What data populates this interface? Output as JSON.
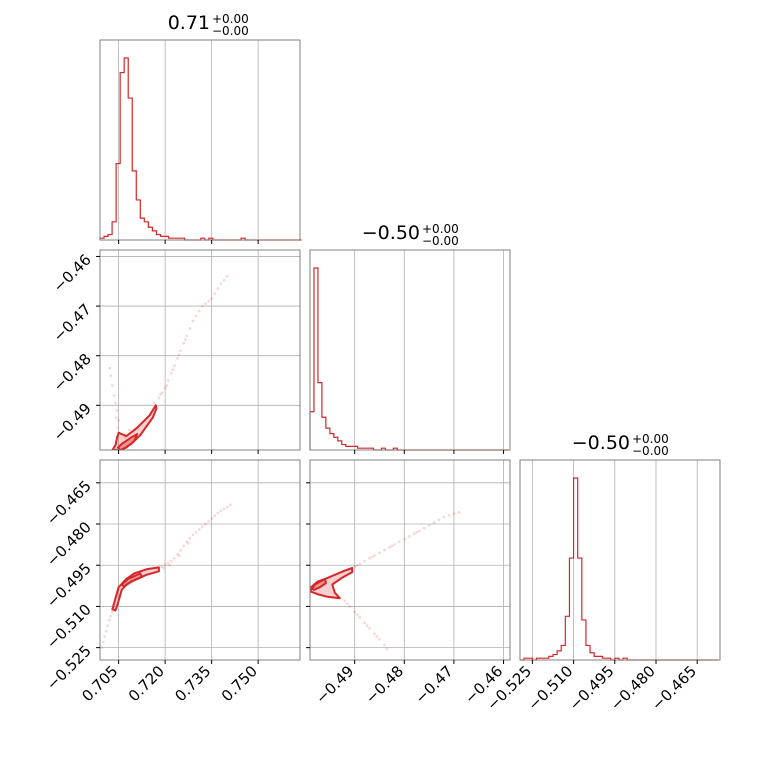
{
  "chart_data": {
    "type": "corner",
    "color": "#d62728",
    "parameters": [
      {
        "index": 0,
        "range": [
          0.699,
          0.7635
        ],
        "ticks": [
          0.705,
          0.72,
          0.735,
          0.75
        ],
        "tick_labels": [
          "0.705",
          "0.720",
          "0.735",
          "0.750"
        ]
      },
      {
        "index": 1,
        "range": [
          -0.499,
          -0.4587
        ],
        "ticks": [
          -0.49,
          -0.48,
          -0.47,
          -0.46
        ],
        "tick_labels": [
          "−0.49",
          "−0.48",
          "−0.47",
          "−0.46"
        ]
      },
      {
        "index": 2,
        "range": [
          -0.5295,
          -0.4567
        ],
        "ticks": [
          -0.525,
          -0.51,
          -0.495,
          -0.48,
          -0.465
        ],
        "tick_labels": [
          "−0.525",
          "−0.510",
          "−0.495",
          "−0.480",
          "−0.465"
        ]
      }
    ],
    "titles": [
      {
        "value": "0.71",
        "plus": "+0.00",
        "minus": "−0.00"
      },
      {
        "value": "−0.50",
        "plus": "+0.00",
        "minus": "−0.00"
      },
      {
        "value": "−0.50",
        "plus": "+0.00",
        "minus": "−0.00"
      }
    ],
    "histograms": [
      {
        "param": 0,
        "edges": [
          0.699,
          0.7003,
          0.7016,
          0.7029,
          0.7042,
          0.7055,
          0.7068,
          0.7081,
          0.7094,
          0.7107,
          0.712,
          0.7133,
          0.7146,
          0.7159,
          0.7172,
          0.7185,
          0.7198,
          0.7211,
          0.7224,
          0.7237,
          0.725,
          0.7263,
          0.7276,
          0.7289,
          0.7302,
          0.7315,
          0.7328,
          0.7341,
          0.7354,
          0.7367,
          0.738,
          0.7393,
          0.7406,
          0.7419,
          0.7432,
          0.7445,
          0.7458,
          0.7471,
          0.7484,
          0.7497,
          0.751,
          0.7523,
          0.7536,
          0.7549,
          0.7562,
          0.7575,
          0.7588,
          0.7601,
          0.7614,
          0.7627,
          0.764
        ],
        "counts": [
          1,
          2,
          3,
          10,
          42,
          92,
          100,
          78,
          38,
          22,
          12,
          10,
          7,
          5,
          3,
          2,
          2,
          1,
          1,
          1,
          1,
          0,
          0,
          0,
          0,
          1,
          0,
          1,
          0,
          0,
          0,
          0,
          0,
          0,
          0,
          1,
          0,
          0,
          0,
          0,
          0,
          0,
          0,
          0,
          0,
          0,
          0,
          0,
          0,
          0
        ]
      },
      {
        "param": 1,
        "edges": [
          -0.499,
          -0.4982,
          -0.4974,
          -0.4966,
          -0.4958,
          -0.495,
          -0.4942,
          -0.4934,
          -0.4926,
          -0.4918,
          -0.491,
          -0.4902,
          -0.4894,
          -0.4886,
          -0.4878,
          -0.487,
          -0.4862,
          -0.4854,
          -0.4846,
          -0.4838,
          -0.483,
          -0.4822,
          -0.4814,
          -0.4806,
          -0.4798,
          -0.479,
          -0.4782,
          -0.4774,
          -0.4766,
          -0.4758,
          -0.475,
          -0.4742,
          -0.4734,
          -0.4726,
          -0.4718,
          -0.471,
          -0.4702,
          -0.4694,
          -0.4686,
          -0.4678,
          -0.467,
          -0.4662,
          -0.4654,
          -0.4646,
          -0.4638,
          -0.463,
          -0.4622,
          -0.4614,
          -0.4606,
          -0.4598,
          -0.459
        ],
        "counts": [
          21,
          100,
          37,
          18,
          12,
          9,
          7,
          5,
          3,
          2,
          2,
          2,
          1,
          1,
          1,
          1,
          0,
          0,
          1,
          0,
          0,
          1,
          0,
          0,
          0,
          0,
          0,
          0,
          0,
          0,
          0,
          0,
          0,
          0,
          0,
          0,
          0,
          0,
          0,
          0,
          0,
          0,
          0,
          0,
          0,
          0,
          0,
          0,
          0,
          0
        ]
      },
      {
        "param": 2,
        "edges": [
          -0.5295,
          -0.528,
          -0.5265,
          -0.525,
          -0.5235,
          -0.522,
          -0.5205,
          -0.519,
          -0.5175,
          -0.516,
          -0.5145,
          -0.513,
          -0.5115,
          -0.51,
          -0.5085,
          -0.507,
          -0.5055,
          -0.504,
          -0.5025,
          -0.501,
          -0.4995,
          -0.498,
          -0.4965,
          -0.495,
          -0.4935,
          -0.492,
          -0.4905,
          -0.489,
          -0.4875,
          -0.486,
          -0.4845,
          -0.483,
          -0.4815,
          -0.48,
          -0.4785,
          -0.477,
          -0.4755,
          -0.474,
          -0.4725,
          -0.471,
          -0.4695,
          -0.468,
          -0.4665,
          -0.465,
          -0.4635,
          -0.462,
          -0.4605,
          -0.459,
          -0.4575
        ],
        "counts": [
          0,
          1,
          1,
          0,
          1,
          1,
          1,
          2,
          3,
          5,
          8,
          24,
          56,
          100,
          56,
          22,
          8,
          4,
          2,
          2,
          1,
          1,
          0,
          1,
          0,
          1,
          0,
          0,
          0,
          0,
          0,
          0,
          0,
          0,
          0,
          0,
          0,
          0,
          0,
          0,
          0,
          0,
          0,
          0,
          0,
          0,
          0,
          0
        ]
      }
    ],
    "contour_panels": [
      {
        "x_param": 0,
        "y_param": 1,
        "regions": [
          {
            "level": "outer",
            "points": [
              [
                0.703,
                -0.499
              ],
              [
                0.704,
                -0.498
              ],
              [
                0.7045,
                -0.4965
              ],
              [
                0.705,
                -0.4955
              ],
              [
                0.706,
                -0.4958
              ],
              [
                0.7075,
                -0.4962
              ],
              [
                0.711,
                -0.4945
              ],
              [
                0.715,
                -0.492
              ],
              [
                0.717,
                -0.49
              ],
              [
                0.7172,
                -0.4907
              ],
              [
                0.716,
                -0.4925
              ],
              [
                0.712,
                -0.496
              ],
              [
                0.709,
                -0.4978
              ],
              [
                0.706,
                -0.499
              ]
            ]
          },
          {
            "level": "inner",
            "points": [
              [
                0.7048,
                -0.4985
              ],
              [
                0.706,
                -0.4978
              ],
              [
                0.709,
                -0.4965
              ],
              [
                0.711,
                -0.4958
              ],
              [
                0.71,
                -0.4972
              ],
              [
                0.7075,
                -0.4985
              ],
              [
                0.7055,
                -0.499
              ]
            ]
          }
        ],
        "scatter": [
          [
            0.705,
            -0.493
          ],
          [
            0.7045,
            -0.491
          ],
          [
            0.704,
            -0.4895
          ],
          [
            0.7035,
            -0.488
          ],
          [
            0.703,
            -0.486
          ],
          [
            0.7025,
            -0.484
          ],
          [
            0.7022,
            -0.4825
          ],
          [
            0.7048,
            -0.4945
          ],
          [
            0.7042,
            -0.4925
          ],
          [
            0.718,
            -0.4885
          ],
          [
            0.719,
            -0.4875
          ],
          [
            0.72,
            -0.4865
          ],
          [
            0.721,
            -0.485
          ],
          [
            0.722,
            -0.4835
          ],
          [
            0.723,
            -0.482
          ],
          [
            0.724,
            -0.4805
          ],
          [
            0.725,
            -0.479
          ],
          [
            0.726,
            -0.4775
          ],
          [
            0.727,
            -0.476
          ],
          [
            0.728,
            -0.4745
          ],
          [
            0.729,
            -0.473
          ],
          [
            0.73,
            -0.472
          ],
          [
            0.731,
            -0.471
          ],
          [
            0.732,
            -0.47
          ],
          [
            0.733,
            -0.4695
          ],
          [
            0.734,
            -0.469
          ],
          [
            0.735,
            -0.4685
          ],
          [
            0.736,
            -0.4675
          ],
          [
            0.737,
            -0.4665
          ],
          [
            0.738,
            -0.4655
          ],
          [
            0.739,
            -0.4648
          ],
          [
            0.74,
            -0.464
          ],
          [
            0.7185,
            -0.4878
          ],
          [
            0.7205,
            -0.486
          ],
          [
            0.7225,
            -0.4828
          ],
          [
            0.7245,
            -0.4798
          ],
          [
            0.7265,
            -0.4768
          ],
          [
            0.7165,
            -0.4895
          ],
          [
            0.707,
            -0.4965
          ],
          [
            0.7085,
            -0.495
          ]
        ]
      },
      {
        "x_param": 0,
        "y_param": 2,
        "regions": [
          {
            "level": "outer",
            "points": [
              [
                0.703,
                -0.511
              ],
              [
                0.704,
                -0.507
              ],
              [
                0.705,
                -0.503
              ],
              [
                0.7075,
                -0.5
              ],
              [
                0.71,
                -0.498
              ],
              [
                0.714,
                -0.4965
              ],
              [
                0.718,
                -0.4958
              ],
              [
                0.718,
                -0.4972
              ],
              [
                0.714,
                -0.4985
              ],
              [
                0.71,
                -0.5005
              ],
              [
                0.7075,
                -0.502
              ],
              [
                0.706,
                -0.504
              ],
              [
                0.705,
                -0.508
              ],
              [
                0.704,
                -0.5115
              ]
            ]
          },
          {
            "level": "inner",
            "points": [
              [
                0.706,
                -0.502
              ],
              [
                0.708,
                -0.5
              ],
              [
                0.712,
                -0.498
              ],
              [
                0.7125,
                -0.4992
              ],
              [
                0.709,
                -0.501
              ],
              [
                0.7068,
                -0.5028
              ]
            ]
          }
        ],
        "scatter": [
          [
            0.6995,
            -0.525
          ],
          [
            0.7,
            -0.523
          ],
          [
            0.7005,
            -0.521
          ],
          [
            0.701,
            -0.519
          ],
          [
            0.7015,
            -0.517
          ],
          [
            0.702,
            -0.515
          ],
          [
            0.7025,
            -0.5135
          ],
          [
            0.703,
            -0.512
          ],
          [
            0.719,
            -0.4955
          ],
          [
            0.72,
            -0.4948
          ],
          [
            0.721,
            -0.4942
          ],
          [
            0.722,
            -0.4935
          ],
          [
            0.723,
            -0.4925
          ],
          [
            0.724,
            -0.491
          ],
          [
            0.725,
            -0.4895
          ],
          [
            0.726,
            -0.488
          ],
          [
            0.727,
            -0.4865
          ],
          [
            0.728,
            -0.4852
          ],
          [
            0.729,
            -0.484
          ],
          [
            0.73,
            -0.483
          ],
          [
            0.731,
            -0.482
          ],
          [
            0.732,
            -0.481
          ],
          [
            0.733,
            -0.48
          ],
          [
            0.734,
            -0.479
          ],
          [
            0.735,
            -0.478
          ],
          [
            0.736,
            -0.477
          ],
          [
            0.737,
            -0.476
          ],
          [
            0.738,
            -0.4752
          ],
          [
            0.739,
            -0.4745
          ],
          [
            0.74,
            -0.4738
          ],
          [
            0.741,
            -0.473
          ],
          [
            0.7195,
            -0.496
          ],
          [
            0.7215,
            -0.495
          ],
          [
            0.7245,
            -0.4915
          ],
          [
            0.7275,
            -0.487
          ]
        ]
      },
      {
        "x_param": 1,
        "y_param": 2,
        "regions": [
          {
            "level": "outer",
            "points": [
              [
                -0.499,
                -0.5045
              ],
              [
                -0.498,
                -0.502
              ],
              [
                -0.496,
                -0.5
              ],
              [
                -0.494,
                -0.4985
              ],
              [
                -0.492,
                -0.497
              ],
              [
                -0.4905,
                -0.496
              ],
              [
                -0.4905,
                -0.4975
              ],
              [
                -0.4925,
                -0.4995
              ],
              [
                -0.4945,
                -0.502
              ],
              [
                -0.494,
                -0.505
              ],
              [
                -0.493,
                -0.507
              ],
              [
                -0.4955,
                -0.5065
              ],
              [
                -0.4975,
                -0.5055
              ]
            ]
          },
          {
            "level": "inner",
            "points": [
              [
                -0.4988,
                -0.503
              ],
              [
                -0.4975,
                -0.501
              ],
              [
                -0.496,
                -0.5
              ],
              [
                -0.4958,
                -0.5015
              ],
              [
                -0.497,
                -0.503
              ],
              [
                -0.4982,
                -0.504
              ]
            ]
          }
        ],
        "scatter": [
          [
            -0.49,
            -0.4955
          ],
          [
            -0.489,
            -0.4945
          ],
          [
            -0.488,
            -0.4935
          ],
          [
            -0.487,
            -0.4925
          ],
          [
            -0.486,
            -0.4915
          ],
          [
            -0.485,
            -0.4905
          ],
          [
            -0.484,
            -0.4895
          ],
          [
            -0.483,
            -0.4885
          ],
          [
            -0.482,
            -0.4875
          ],
          [
            -0.481,
            -0.4865
          ],
          [
            -0.48,
            -0.4855
          ],
          [
            -0.479,
            -0.4845
          ],
          [
            -0.478,
            -0.4835
          ],
          [
            -0.477,
            -0.4825
          ],
          [
            -0.476,
            -0.4815
          ],
          [
            -0.475,
            -0.4805
          ],
          [
            -0.474,
            -0.4795
          ],
          [
            -0.473,
            -0.4785
          ],
          [
            -0.472,
            -0.4775
          ],
          [
            -0.471,
            -0.4768
          ],
          [
            -0.47,
            -0.4762
          ],
          [
            -0.469,
            -0.4758
          ],
          [
            -0.492,
            -0.508
          ],
          [
            -0.491,
            -0.51
          ],
          [
            -0.49,
            -0.512
          ],
          [
            -0.489,
            -0.514
          ],
          [
            -0.488,
            -0.516
          ],
          [
            -0.487,
            -0.518
          ],
          [
            -0.486,
            -0.52
          ],
          [
            -0.485,
            -0.522
          ],
          [
            -0.484,
            -0.524
          ],
          [
            -0.4835,
            -0.5255
          ],
          [
            -0.4915,
            -0.509
          ],
          [
            -0.4895,
            -0.513
          ],
          [
            -0.4875,
            -0.517
          ],
          [
            -0.4855,
            -0.521
          ],
          [
            -0.4895,
            -0.495
          ],
          [
            -0.4865,
            -0.492
          ],
          [
            -0.4825,
            -0.488
          ],
          [
            -0.4775,
            -0.483
          ]
        ]
      }
    ]
  }
}
